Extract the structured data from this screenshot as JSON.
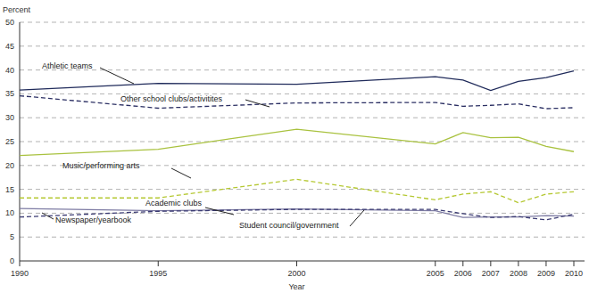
{
  "chart_data": {
    "type": "line",
    "y_label": "Percent",
    "x_label": "Year",
    "x": [
      1990,
      1995,
      2000,
      2005,
      2006,
      2007,
      2008,
      2009,
      2010
    ],
    "xlim": [
      1990,
      2010
    ],
    "xticks": [
      1990,
      1995,
      2000,
      2005,
      2006,
      2007,
      2008,
      2009,
      2010
    ],
    "ylim": [
      0,
      50
    ],
    "yticks": [
      0,
      5,
      10,
      15,
      20,
      25,
      30,
      35,
      40,
      45,
      50
    ],
    "grid": true,
    "series": [
      {
        "name": "Athletic teams",
        "color": "#1f2a5a",
        "line_style": "solid",
        "values": [
          35.8,
          37.2,
          37.0,
          38.6,
          37.9,
          35.7,
          37.6,
          38.4,
          39.8
        ]
      },
      {
        "name": "Other school clubs/activitites",
        "color": "#2b2f63",
        "line_style": "dashed",
        "values": [
          34.6,
          32.0,
          33.1,
          33.2,
          32.4,
          32.6,
          32.9,
          31.9,
          32.1
        ]
      },
      {
        "name": "Music/performing arts",
        "color": "#a9c23f",
        "line_style": "solid",
        "values": [
          22.1,
          23.4,
          27.6,
          24.5,
          26.9,
          25.8,
          25.9,
          24.0,
          22.9
        ]
      },
      {
        "name": "Academic clubs",
        "color": "#b5c832",
        "line_style": "dashed",
        "values": [
          13.2,
          13.2,
          17.1,
          12.8,
          14.0,
          14.5,
          12.2,
          14.0,
          14.5
        ]
      },
      {
        "name": "Student council/government",
        "color": "#7d7ba3",
        "line_style": "solid",
        "values": [
          11.0,
          10.5,
          10.9,
          10.5,
          9.1,
          9.2,
          9.2,
          9.5,
          9.4
        ]
      },
      {
        "name": "Newspaper/yearbook",
        "color": "#3a3a72",
        "line_style": "dashed",
        "values": [
          9.2,
          10.4,
          10.8,
          10.8,
          9.9,
          9.1,
          9.3,
          8.6,
          9.8
        ]
      }
    ]
  }
}
